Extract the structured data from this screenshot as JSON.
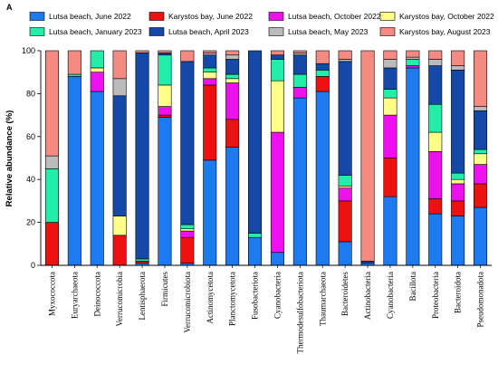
{
  "chart_data": {
    "type": "bar",
    "stacked": true,
    "panel_label": "A",
    "xlabel": "",
    "ylabel": "Relative abundance (%)",
    "ylim": [
      0,
      100
    ],
    "yticks": [
      0,
      20,
      40,
      60,
      80,
      100
    ],
    "grid": false,
    "legend_position": "top",
    "series": [
      {
        "name": "Lutsa beach, June 2022",
        "color": "#1E7AF0",
        "values": [
          0,
          88,
          81,
          0,
          1,
          69,
          1,
          49,
          55,
          13,
          6,
          78,
          81,
          11,
          1,
          32,
          92,
          24,
          23,
          27
        ]
      },
      {
        "name": "Karystos bay, June 2022",
        "color": "#EE1111",
        "values": [
          20,
          0,
          0,
          14,
          1,
          1,
          12,
          35,
          13,
          0,
          0,
          0,
          7,
          19,
          0,
          18,
          0,
          7,
          7,
          11
        ]
      },
      {
        "name": "Lutsa beach, October 2022",
        "color": "#EE11EE",
        "values": [
          0,
          0,
          9,
          0,
          0,
          4,
          3,
          3,
          17,
          0,
          56,
          5,
          0,
          6,
          0,
          20,
          1,
          22,
          8,
          9
        ]
      },
      {
        "name": "Karystos bay, October 2022",
        "color": "#FFFF88",
        "values": [
          0,
          0,
          2,
          9,
          0,
          10,
          1,
          3,
          2,
          0,
          24,
          0,
          0,
          1,
          0,
          8,
          0,
          9,
          2,
          5
        ]
      },
      {
        "name": "Lutsa beach, January 2023",
        "color": "#22EEAA",
        "values": [
          25,
          1,
          8,
          0,
          1,
          14,
          2,
          2,
          2,
          2,
          10,
          6,
          3,
          5,
          0,
          4,
          3,
          13,
          3,
          2
        ]
      },
      {
        "name": "Lutsa beach, April 2023",
        "color": "#1549A8",
        "values": [
          0,
          0,
          0,
          56,
          96,
          1,
          76,
          6,
          7,
          85,
          2,
          9,
          3,
          53,
          1,
          10,
          0,
          18,
          48,
          18
        ]
      },
      {
        "name": "Lutsa beach, May 2023",
        "color": "#BBBBBB",
        "values": [
          6,
          0,
          0,
          8,
          0,
          0,
          0,
          1,
          2,
          0,
          0,
          1,
          0,
          1,
          0,
          4,
          1,
          3,
          2,
          2
        ]
      },
      {
        "name": "Karystos bay, August 2023",
        "color": "#F58A82",
        "values": [
          49,
          11,
          0,
          13,
          1,
          1,
          5,
          1,
          2,
          0,
          2,
          1,
          6,
          4,
          98,
          4,
          3,
          4,
          7,
          26
        ]
      }
    ],
    "categories": [
      "Myxococcota",
      "Euryarchaeota",
      "Deinococcota",
      "Verrucomicrobia",
      "Lentisphaerota",
      "Firmicutes",
      "Verrucomicrobiota",
      "Actinomycetota",
      "Planctomycetota",
      "Fusobacteriota",
      "Cyanobacteria",
      "Thermodesulfobacteriota",
      "Thaumarchaeota",
      "Bacteroidetes",
      "Actinobacteria",
      "Cyanobacteria",
      "Bacillota",
      "Proteobacteria",
      "Bacteroidota",
      "Pseudomonadota"
    ]
  }
}
